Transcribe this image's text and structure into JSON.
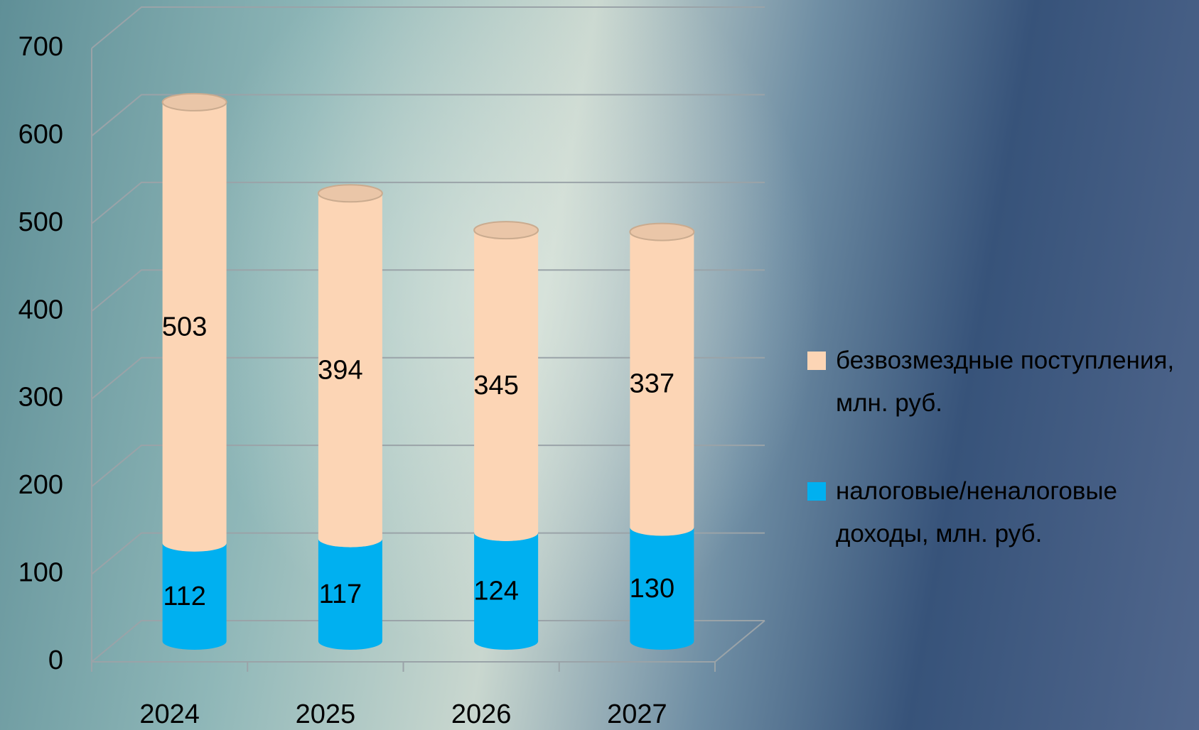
{
  "chart_data": {
    "type": "bar",
    "stacked": true,
    "style": "3d-cylinder",
    "categories": [
      "2024",
      "2025",
      "2026",
      "2027"
    ],
    "series": [
      {
        "name": "налоговые/неналоговые доходы, млн. руб.",
        "color": "#00b0f0",
        "values": [
          112,
          117,
          124,
          130
        ]
      },
      {
        "name": "безвозмездные поступления, млн. руб.",
        "color": "#fcd5b5",
        "values": [
          503,
          394,
          345,
          337
        ]
      }
    ],
    "ylim": [
      0,
      700
    ],
    "yticks": [
      0,
      100,
      200,
      300,
      400,
      500,
      600,
      700
    ],
    "grid": true,
    "legend": "right"
  }
}
